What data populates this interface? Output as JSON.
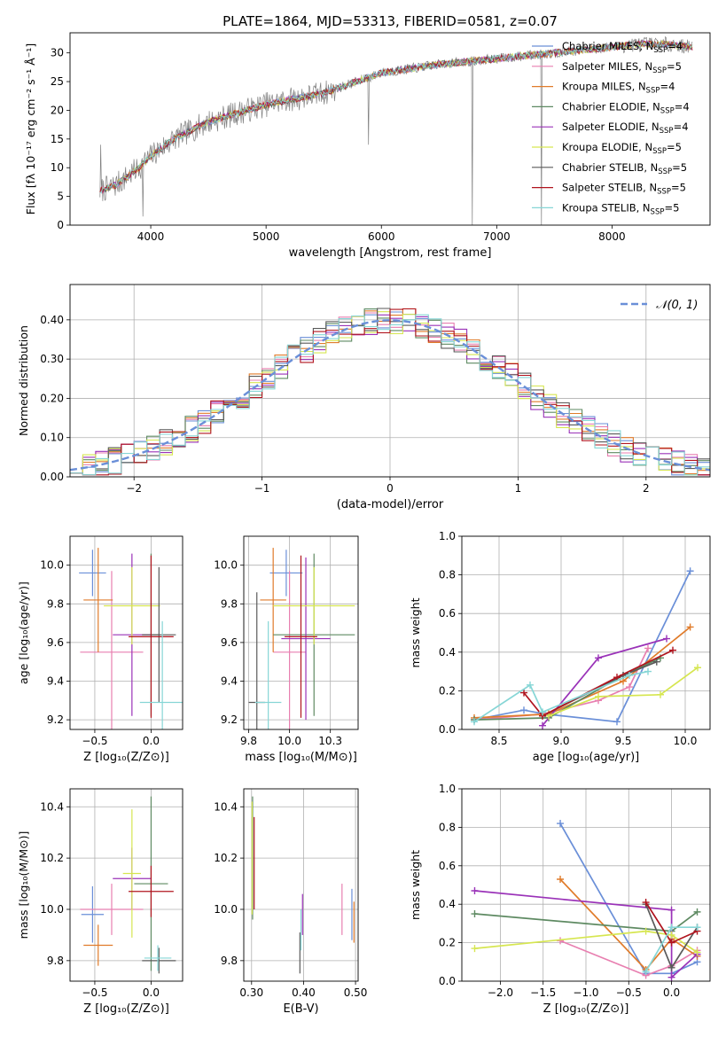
{
  "figure_title": "PLATE=1864, MJD=53313, FIBERID=0581, z=0.07",
  "models": [
    {
      "name": "Chabrier MILES",
      "nssp": "4",
      "color": "#6a8fd8"
    },
    {
      "name": "Salpeter MILES",
      "nssp": "5",
      "color": "#e87fb0"
    },
    {
      "name": "Kroupa MILES",
      "nssp": "4",
      "color": "#e07b2a"
    },
    {
      "name": "Chabrier ELODIE",
      "nssp": "4",
      "color": "#5e8a62"
    },
    {
      "name": "Salpeter ELODIE",
      "nssp": "4",
      "color": "#9a32b8"
    },
    {
      "name": "Kroupa ELODIE",
      "nssp": "5",
      "color": "#d6e650"
    },
    {
      "name": "Chabrier STELIB",
      "nssp": "5",
      "color": "#5a5a5a"
    },
    {
      "name": "Salpeter STELIB",
      "nssp": "5",
      "color": "#b0141e"
    },
    {
      "name": "Kroupa STELIB",
      "nssp": "5",
      "color": "#86d6d6"
    }
  ],
  "chart_data": [
    {
      "id": "spectrum",
      "type": "line",
      "xlabel": "wavelength [Angstrom, rest frame]",
      "ylabel": "Flux [fλ 10⁻¹⁷ erg cm⁻² s⁻¹ Å⁻¹]",
      "xlim": [
        3300,
        8850
      ],
      "ylim": [
        0,
        33.5
      ],
      "xticks": [
        4000,
        5000,
        6000,
        7000,
        8000
      ],
      "yticks": [
        0,
        5,
        10,
        15,
        20,
        25,
        30
      ],
      "grid": false,
      "legend": "right",
      "data_color": "#808080",
      "continuum": {
        "x": [
          3560,
          3700,
          3900,
          4000,
          4200,
          4500,
          5000,
          5500,
          6000,
          6500,
          7000,
          7500,
          8000,
          8200,
          8500,
          8700
        ],
        "y": [
          6,
          7,
          10,
          12,
          15,
          18,
          21,
          23,
          26.5,
          28,
          29,
          30,
          31,
          31.5,
          31.5,
          31
        ]
      },
      "spikes": [
        {
          "x": 3568,
          "y": 14
        },
        {
          "x": 3930,
          "y": 1.5
        },
        {
          "x": 5890,
          "y": 14
        },
        {
          "x": 6790,
          "y": 0
        },
        {
          "x": 7390,
          "y": 0
        }
      ]
    },
    {
      "id": "residuals",
      "type": "histogram",
      "xlabel": "(data-model)/error",
      "ylabel": "Normed distribution",
      "xlim": [
        -2.5,
        2.5
      ],
      "ylim": [
        0,
        0.49
      ],
      "xticks": [
        -2,
        -1,
        0,
        1,
        2
      ],
      "yticks": [
        0.0,
        0.1,
        0.2,
        0.3,
        0.4
      ],
      "grid": true,
      "legend": "top-right",
      "reference": {
        "label": "𝒩(0, 1)",
        "mu": 0,
        "sigma": 1,
        "color": "#6a8fd8"
      },
      "bin_width": 0.1
    },
    {
      "id": "age-vs-Z",
      "type": "errorbar",
      "xlabel": "Z [log₁₀(Z/Z⊙)]",
      "ylabel": "age  [log₁₀(age/yr)]",
      "xlim": [
        -0.72,
        0.28
      ],
      "ylim": [
        9.15,
        10.15
      ],
      "xticks": [
        -0.5,
        0.0
      ],
      "yticks": [
        9.2,
        9.4,
        9.6,
        9.8,
        10.0
      ],
      "grid": true,
      "points": [
        {
          "model": 0,
          "x": -0.52,
          "y": 9.96,
          "xerr": 0.12,
          "yerr": 0.12
        },
        {
          "model": 1,
          "x": -0.35,
          "y": 9.55,
          "xerr": 0.28,
          "yerr": 0.42
        },
        {
          "model": 2,
          "x": -0.47,
          "y": 9.82,
          "xerr": 0.13,
          "yerr": 0.27
        },
        {
          "model": 3,
          "x": 0.0,
          "y": 9.64,
          "xerr": 0.08,
          "yerr": 0.42
        },
        {
          "model": 4,
          "x": -0.17,
          "y": 9.64,
          "xerr": 0.17,
          "yerr": 0.42
        },
        {
          "model": 5,
          "x": -0.17,
          "y": 9.79,
          "xerr": 0.25,
          "yerr": 0.2
        },
        {
          "model": 6,
          "x": 0.07,
          "y": 9.64,
          "xerr": 0.15,
          "yerr": 0.35
        },
        {
          "model": 7,
          "x": 0.0,
          "y": 9.63,
          "xerr": 0.2,
          "yerr": 0.42
        },
        {
          "model": 8,
          "x": 0.1,
          "y": 9.29,
          "xerr": 0.2,
          "yerr": 0.42
        }
      ]
    },
    {
      "id": "age-vs-mass",
      "type": "errorbar",
      "xlabel": "mass [log₁₀(M/M⊙)]",
      "ylabel": "",
      "xlim": [
        9.72,
        10.42
      ],
      "ylim": [
        9.15,
        10.15
      ],
      "xticks": [
        9.75,
        10.0,
        10.25
      ],
      "yticks": [
        9.2,
        9.4,
        9.6,
        9.8,
        10.0
      ],
      "grid": true,
      "points": [
        {
          "model": 0,
          "x": 9.98,
          "y": 9.96,
          "xerr": 0.1,
          "yerr": 0.12
        },
        {
          "model": 1,
          "x": 10.0,
          "y": 9.55,
          "xerr": 0.1,
          "yerr": 0.42
        },
        {
          "model": 2,
          "x": 9.9,
          "y": 9.82,
          "xerr": 0.08,
          "yerr": 0.27
        },
        {
          "model": 3,
          "x": 10.15,
          "y": 9.64,
          "xerr": 0.25,
          "yerr": 0.42
        },
        {
          "model": 4,
          "x": 10.1,
          "y": 9.62,
          "xerr": 0.15,
          "yerr": 0.42
        },
        {
          "model": 5,
          "x": 10.15,
          "y": 9.79,
          "xerr": 0.25,
          "yerr": 0.2
        },
        {
          "model": 6,
          "x": 9.8,
          "y": 9.29,
          "xerr": 0.05,
          "yerr": 0.57
        },
        {
          "model": 7,
          "x": 10.07,
          "y": 9.63,
          "xerr": 0.1,
          "yerr": 0.42
        },
        {
          "model": 8,
          "x": 9.87,
          "y": 9.29,
          "xerr": 0.08,
          "yerr": 0.42
        }
      ]
    },
    {
      "id": "mass-weight-vs-age",
      "type": "line",
      "xlabel": "age  [log₁₀(age/yr)]",
      "ylabel": "mass weight",
      "xlim": [
        8.2,
        10.2
      ],
      "ylim": [
        0,
        1.0
      ],
      "xticks": [
        8.5,
        9.0,
        9.5,
        10.0
      ],
      "yticks": [
        0.0,
        0.2,
        0.4,
        0.6,
        0.8,
        1.0
      ],
      "grid": true,
      "series": [
        {
          "model": 0,
          "x": [
            8.3,
            8.7,
            8.87,
            9.45,
            10.04
          ],
          "y": [
            0.05,
            0.1,
            0.08,
            0.04,
            0.82
          ]
        },
        {
          "model": 1,
          "x": [
            8.3,
            8.85,
            9.3,
            9.55,
            9.7
          ],
          "y": [
            0.05,
            0.08,
            0.15,
            0.22,
            0.42
          ]
        },
        {
          "model": 2,
          "x": [
            8.3,
            8.9,
            9.5,
            10.04
          ],
          "y": [
            0.06,
            0.08,
            0.25,
            0.53
          ]
        },
        {
          "model": 3,
          "x": [
            8.3,
            8.9,
            9.5,
            9.8
          ],
          "y": [
            0.05,
            0.06,
            0.28,
            0.37
          ]
        },
        {
          "model": 4,
          "x": [
            8.85,
            9.3,
            9.85
          ],
          "y": [
            0.02,
            0.37,
            0.47
          ]
        },
        {
          "model": 5,
          "x": [
            8.9,
            9.3,
            9.8,
            10.1
          ],
          "y": [
            0.07,
            0.17,
            0.18,
            0.32
          ]
        },
        {
          "model": 6,
          "x": [
            8.85,
            9.5,
            9.77
          ],
          "y": [
            0.07,
            0.28,
            0.35
          ]
        },
        {
          "model": 7,
          "x": [
            8.7,
            8.85,
            9.45,
            9.9
          ],
          "y": [
            0.19,
            0.07,
            0.27,
            0.41
          ]
        },
        {
          "model": 8,
          "x": [
            8.3,
            8.75,
            8.85,
            9.55,
            9.7
          ],
          "y": [
            0.04,
            0.23,
            0.09,
            0.28,
            0.3
          ]
        }
      ]
    },
    {
      "id": "mass-vs-Z",
      "type": "errorbar",
      "xlabel": "Z [log₁₀(Z/Z⊙)]",
      "ylabel": "mass [log₁₀(M/M⊙)]",
      "xlim": [
        -0.72,
        0.28
      ],
      "ylim": [
        9.72,
        10.47
      ],
      "xticks": [
        -0.5,
        0.0
      ],
      "yticks": [
        9.8,
        10.0,
        10.2,
        10.4
      ],
      "grid": true,
      "points": [
        {
          "model": 0,
          "x": -0.52,
          "y": 9.98,
          "xerr": 0.1,
          "yerr": 0.11
        },
        {
          "model": 1,
          "x": -0.35,
          "y": 10.0,
          "xerr": 0.28,
          "yerr": 0.1
        },
        {
          "model": 2,
          "x": -0.47,
          "y": 9.86,
          "xerr": 0.13,
          "yerr": 0.08
        },
        {
          "model": 3,
          "x": 0.0,
          "y": 10.1,
          "xerr": 0.15,
          "yerr": 0.34
        },
        {
          "model": 4,
          "x": -0.17,
          "y": 10.12,
          "xerr": 0.17,
          "yerr": 0.12
        },
        {
          "model": 5,
          "x": -0.17,
          "y": 10.14,
          "xerr": 0.08,
          "yerr": 0.25
        },
        {
          "model": 6,
          "x": 0.07,
          "y": 9.8,
          "xerr": 0.15,
          "yerr": 0.05
        },
        {
          "model": 7,
          "x": 0.0,
          "y": 10.07,
          "xerr": 0.2,
          "yerr": 0.1
        },
        {
          "model": 8,
          "x": 0.06,
          "y": 9.81,
          "xerr": 0.12,
          "yerr": 0.05
        }
      ]
    },
    {
      "id": "mass-vs-ebv",
      "type": "errorbar",
      "xlabel": "E(B-V)",
      "ylabel": "",
      "xlim": [
        0.285,
        0.505
      ],
      "ylim": [
        9.72,
        10.47
      ],
      "xticks": [
        0.3,
        0.4,
        0.5
      ],
      "yticks": [
        9.8,
        10.0,
        10.2,
        10.4
      ],
      "grid": true,
      "points": [
        {
          "model": 0,
          "x": 0.493,
          "y": 9.98,
          "xerr": 0,
          "yerr": 0.1
        },
        {
          "model": 1,
          "x": 0.474,
          "y": 10.0,
          "xerr": 0,
          "yerr": 0.1
        },
        {
          "model": 2,
          "x": 0.497,
          "y": 9.95,
          "xerr": 0,
          "yerr": 0.08
        },
        {
          "model": 3,
          "x": 0.302,
          "y": 10.2,
          "xerr": 0,
          "yerr": 0.24
        },
        {
          "model": 4,
          "x": 0.398,
          "y": 9.98,
          "xerr": 0,
          "yerr": 0.08
        },
        {
          "model": 5,
          "x": 0.301,
          "y": 10.2,
          "xerr": 0,
          "yerr": 0.22
        },
        {
          "model": 6,
          "x": 0.393,
          "y": 9.83,
          "xerr": 0,
          "yerr": 0.08
        },
        {
          "model": 7,
          "x": 0.305,
          "y": 10.18,
          "xerr": 0,
          "yerr": 0.18
        },
        {
          "model": 8,
          "x": 0.395,
          "y": 9.92,
          "xerr": 0,
          "yerr": 0.08
        }
      ]
    },
    {
      "id": "mass-weight-vs-Z",
      "type": "line",
      "xlabel": "Z [log₁₀(Z/Z⊙)]",
      "ylabel": "mass weight",
      "xlim": [
        -2.45,
        0.45
      ],
      "ylim": [
        0,
        1.0
      ],
      "xticks": [
        -2.0,
        -1.5,
        -1.0,
        -0.5,
        0.0
      ],
      "yticks": [
        0.0,
        0.2,
        0.4,
        0.6,
        0.8,
        1.0
      ],
      "grid": true,
      "series": [
        {
          "model": 0,
          "x": [
            -1.3,
            -0.3,
            0.0,
            0.3
          ],
          "y": [
            0.82,
            0.04,
            0.04,
            0.1
          ]
        },
        {
          "model": 1,
          "x": [
            -1.3,
            -0.3,
            0.0,
            0.3
          ],
          "y": [
            0.21,
            0.03,
            0.08,
            0.16
          ]
        },
        {
          "model": 2,
          "x": [
            -1.3,
            -0.3,
            0.0,
            0.3
          ],
          "y": [
            0.53,
            0.06,
            0.22,
            0.13
          ]
        },
        {
          "model": 3,
          "x": [
            -2.3,
            0.0,
            0.3
          ],
          "y": [
            0.35,
            0.26,
            0.36
          ]
        },
        {
          "model": 4,
          "x": [
            -2.3,
            0.0,
            0.0,
            0.3
          ],
          "y": [
            0.47,
            0.37,
            0.02,
            0.14
          ]
        },
        {
          "model": 5,
          "x": [
            -2.3,
            -0.3,
            0.0,
            0.3
          ],
          "y": [
            0.17,
            0.26,
            0.24,
            0.15
          ]
        },
        {
          "model": 6,
          "x": [
            -0.3,
            0.0,
            0.3
          ],
          "y": [
            0.4,
            0.07,
            0.28
          ]
        },
        {
          "model": 7,
          "x": [
            -0.3,
            0.0,
            0.3
          ],
          "y": [
            0.41,
            0.2,
            0.26
          ]
        },
        {
          "model": 8,
          "x": [
            -0.3,
            0.0,
            0.3
          ],
          "y": [
            0.05,
            0.28,
            0.28
          ]
        }
      ]
    }
  ]
}
